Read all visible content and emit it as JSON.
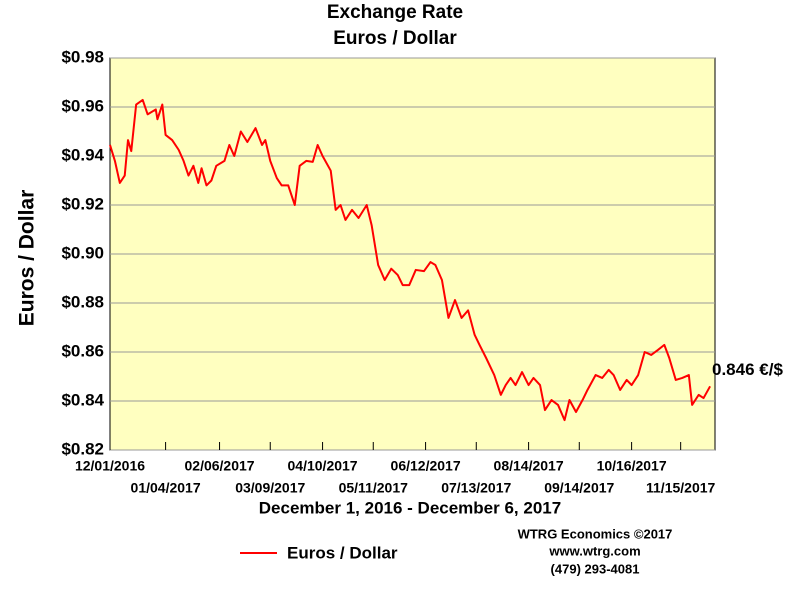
{
  "chart_data": {
    "type": "line",
    "title": "Exchange Rate",
    "subtitle": "Euros / Dollar",
    "y_label": "Euros / Dollar",
    "x_label": "December 1, 2016 - December 6, 2017",
    "annotation": "0.846 €/$",
    "credits": [
      "WTRG Economics  ©2017",
      "www.wtrg.com",
      "(479) 293-4081"
    ],
    "x": [
      "12/01/2016",
      "12/04/2016",
      "12/07/2016",
      "12/10/2016",
      "12/12/2016",
      "12/14/2016",
      "12/17/2016",
      "12/21/2016",
      "12/24/2016",
      "12/29/2016",
      "12/30/2016",
      "01/02/2017",
      "01/04/2017",
      "01/08/2017",
      "01/12/2017",
      "01/15/2017",
      "01/18/2017",
      "01/21/2017",
      "01/24/2017",
      "01/26/2017",
      "01/29/2017",
      "02/01/2017",
      "02/04/2017",
      "02/09/2017",
      "02/12/2017",
      "02/15/2017",
      "02/19/2017",
      "02/23/2017",
      "02/28/2017",
      "03/04/2017",
      "03/06/2017",
      "03/09/2017",
      "03/13/2017",
      "03/16/2017",
      "03/20/2017",
      "03/24/2017",
      "03/27/2017",
      "03/31/2017",
      "04/04/2017",
      "04/07/2017",
      "04/10/2017",
      "04/15/2017",
      "04/18/2017",
      "04/21/2017",
      "04/24/2017",
      "04/28/2017",
      "05/02/2017",
      "05/07/2017",
      "05/10/2017",
      "05/14/2017",
      "05/18/2017",
      "05/22/2017",
      "05/26/2017",
      "05/29/2017",
      "06/02/2017",
      "06/06/2017",
      "06/11/2017",
      "06/15/2017",
      "06/18/2017",
      "06/22/2017",
      "06/26/2017",
      "06/30/2017",
      "07/04/2017",
      "07/08/2017",
      "07/12/2017",
      "07/15/2017",
      "07/19/2017",
      "07/24/2017",
      "07/28/2017",
      "07/31/2017",
      "08/03/2017",
      "08/06/2017",
      "08/10/2017",
      "08/14/2017",
      "08/17/2017",
      "08/21/2017",
      "08/24/2017",
      "08/28/2017",
      "09/01/2017",
      "09/05/2017",
      "09/08/2017",
      "09/12/2017",
      "09/16/2017",
      "09/19/2017",
      "09/24/2017",
      "09/28/2017",
      "10/02/2017",
      "10/05/2017",
      "10/09/2017",
      "10/13/2017",
      "10/16/2017",
      "10/20/2017",
      "10/24/2017",
      "10/28/2017",
      "11/01/2017",
      "11/05/2017",
      "11/08/2017",
      "11/12/2017",
      "11/16/2017",
      "11/20/2017",
      "11/22/2017",
      "11/26/2017",
      "11/29/2017",
      "12/03/2017"
    ],
    "series": [
      {
        "name": "Euros / Dollar",
        "color": "#ff0000",
        "values": [
          0.9445,
          0.938,
          0.929,
          0.932,
          0.9465,
          0.942,
          0.961,
          0.9629,
          0.957,
          0.959,
          0.955,
          0.961,
          0.9486,
          0.9465,
          0.9425,
          0.938,
          0.932,
          0.936,
          0.929,
          0.935,
          0.928,
          0.93,
          0.936,
          0.938,
          0.9445,
          0.94,
          0.95,
          0.9457,
          0.9514,
          0.9445,
          0.9465,
          0.938,
          0.931,
          0.928,
          0.928,
          0.92,
          0.936,
          0.938,
          0.9376,
          0.9445,
          0.94,
          0.934,
          0.918,
          0.92,
          0.9139,
          0.918,
          0.9147,
          0.92,
          0.9118,
          0.8955,
          0.8894,
          0.894,
          0.8914,
          0.8873,
          0.8873,
          0.8935,
          0.893,
          0.8967,
          0.8955,
          0.8894,
          0.8739,
          0.8812,
          0.8739,
          0.877,
          0.867,
          0.8629,
          0.8576,
          0.8506,
          0.8425,
          0.8465,
          0.8494,
          0.8465,
          0.8518,
          0.8465,
          0.8494,
          0.8465,
          0.8363,
          0.8404,
          0.8384,
          0.8322,
          0.8404,
          0.8355,
          0.8404,
          0.8445,
          0.8506,
          0.8494,
          0.8527,
          0.8506,
          0.8445,
          0.8486,
          0.8465,
          0.8506,
          0.86,
          0.8588,
          0.8608,
          0.8629,
          0.8576,
          0.8486,
          0.8494,
          0.8506,
          0.8384,
          0.8425,
          0.8412,
          0.846
        ]
      }
    ],
    "xlim": [
      "12/01/2016",
      "12/06/2017"
    ],
    "xticks": [
      "12/01/2016",
      "01/04/2017",
      "02/06/2017",
      "03/09/2017",
      "04/10/2017",
      "05/11/2017",
      "06/12/2017",
      "07/13/2017",
      "08/14/2017",
      "09/14/2017",
      "10/16/2017",
      "11/15/2017"
    ],
    "ylim": [
      0.82,
      0.98
    ],
    "yticks": [
      {
        "value": 0.82,
        "label": "$0.82"
      },
      {
        "value": 0.84,
        "label": "$0.84"
      },
      {
        "value": 0.86,
        "label": "$0.86"
      },
      {
        "value": 0.88,
        "label": "$0.88"
      },
      {
        "value": 0.9,
        "label": "$0.90"
      },
      {
        "value": 0.92,
        "label": "$0.92"
      },
      {
        "value": 0.94,
        "label": "$0.94"
      },
      {
        "value": 0.96,
        "label": "$0.96"
      },
      {
        "value": 0.98,
        "label": "$0.98"
      }
    ],
    "grid": true
  }
}
